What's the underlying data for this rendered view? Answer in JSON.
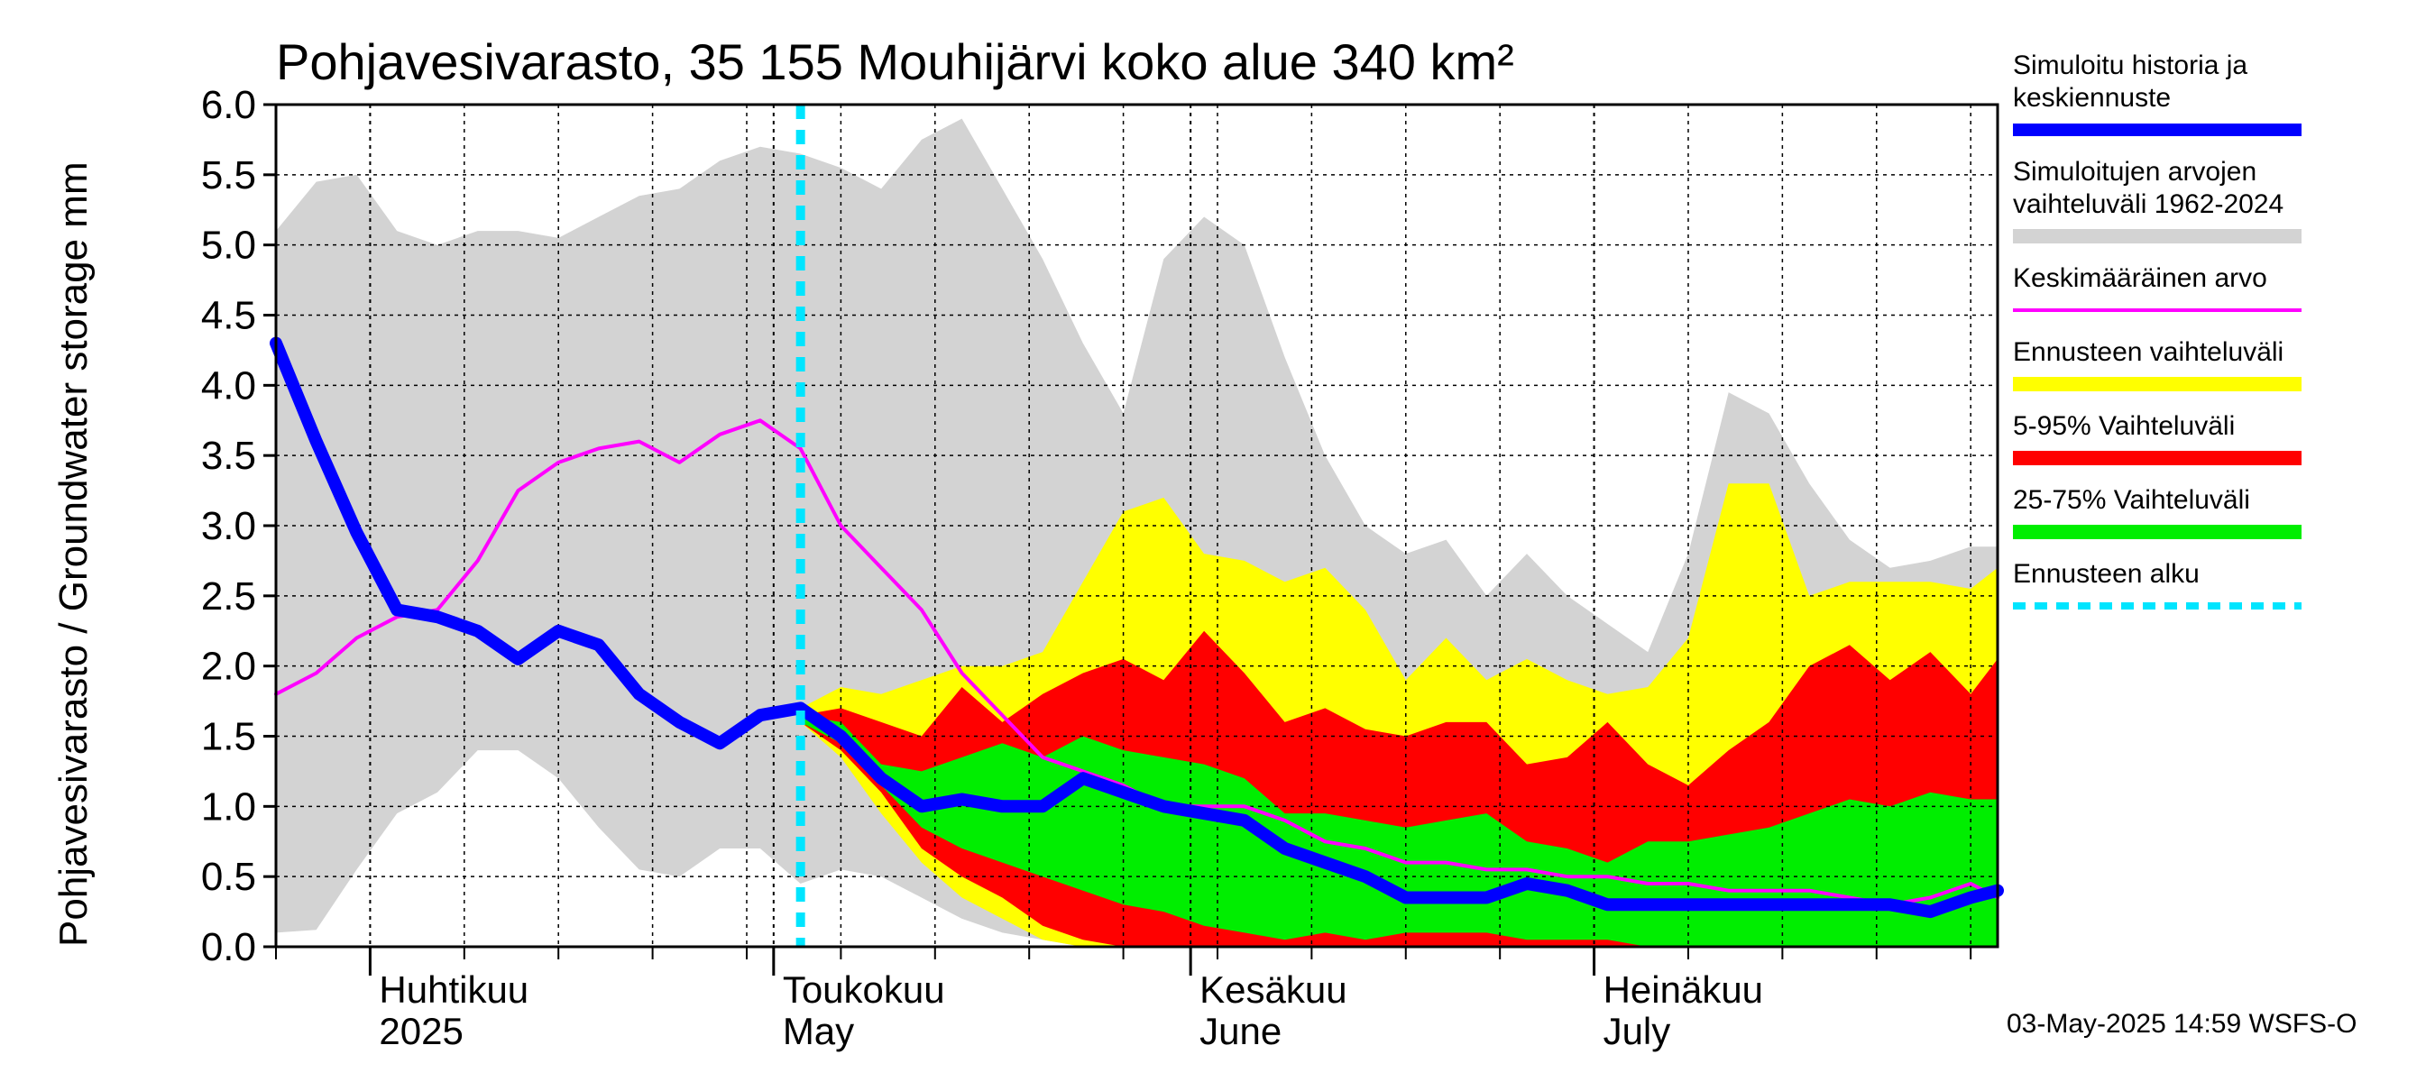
{
  "chart_data": {
    "type": "area",
    "title": "Pohjavesivarasto, 35 155 Mouhijärvi koko alue 340 km²",
    "ylabel": "Pohjavesivarasto / Groundwater storage   mm",
    "ylim": [
      0,
      6.0
    ],
    "yticks": [
      "0.0",
      "0.5",
      "1.0",
      "1.5",
      "2.0",
      "2.5",
      "3.0",
      "3.5",
      "4.0",
      "4.5",
      "5.0",
      "5.5",
      "6.0"
    ],
    "xlim": [
      "2025-03-25",
      "2025-07-31"
    ],
    "x_labels": [
      {
        "date": "2025-04-01",
        "line1": "Huhtikuu",
        "line2": "2025"
      },
      {
        "date": "2025-05-01",
        "line1": "Toukokuu",
        "line2": "May"
      },
      {
        "date": "2025-06-01",
        "line1": "Kesäkuu",
        "line2": "June"
      },
      {
        "date": "2025-07-01",
        "line1": "Heinäkuu",
        "line2": "July"
      }
    ],
    "forecast_start": "2025-05-03",
    "footer": "03-May-2025 14:59 WSFS-O",
    "legend": [
      {
        "label_lines": [
          "Simuloitu historia ja",
          "keskiennuste"
        ],
        "color": "#0000ff",
        "style": "thick"
      },
      {
        "label_lines": [
          "Simuloitujen arvojen",
          "vaihteluväli 1962-2024"
        ],
        "color": "#d3d3d3",
        "style": "band"
      },
      {
        "label_lines": [
          "Keskimääräinen arvo"
        ],
        "color": "#ff00ff",
        "style": "thin"
      },
      {
        "label_lines": [
          "Ennusteen vaihteluväli"
        ],
        "color": "#ffff00",
        "style": "band"
      },
      {
        "label_lines": [
          "5-95% Vaihteluväli"
        ],
        "color": "#ff0000",
        "style": "band"
      },
      {
        "label_lines": [
          "25-75% Vaihteluväli"
        ],
        "color": "#00ee00",
        "style": "band"
      },
      {
        "label_lines": [
          "Ennusteen alku"
        ],
        "color": "#00e5ff",
        "style": "dashed"
      }
    ],
    "series": [
      {
        "name": "Simuloitujen arvojen vaihteluväli 1962-2024",
        "kind": "band",
        "color": "#d3d3d3",
        "x": [
          "2025-03-25",
          "2025-03-28",
          "2025-03-31",
          "2025-04-03",
          "2025-04-06",
          "2025-04-09",
          "2025-04-12",
          "2025-04-15",
          "2025-04-18",
          "2025-04-21",
          "2025-04-24",
          "2025-04-27",
          "2025-04-30",
          "2025-05-03",
          "2025-05-06",
          "2025-05-09",
          "2025-05-12",
          "2025-05-15",
          "2025-05-18",
          "2025-05-21",
          "2025-05-24",
          "2025-05-27",
          "2025-05-30",
          "2025-06-02",
          "2025-06-05",
          "2025-06-08",
          "2025-06-11",
          "2025-06-14",
          "2025-06-17",
          "2025-06-20",
          "2025-06-23",
          "2025-06-26",
          "2025-06-29",
          "2025-07-02",
          "2025-07-05",
          "2025-07-08",
          "2025-07-11",
          "2025-07-14",
          "2025-07-17",
          "2025-07-20",
          "2025-07-23",
          "2025-07-26",
          "2025-07-29",
          "2025-07-31"
        ],
        "upper": [
          5.1,
          5.45,
          5.5,
          5.1,
          5.0,
          5.1,
          5.1,
          5.05,
          5.2,
          5.35,
          5.4,
          5.6,
          5.7,
          5.65,
          5.55,
          5.4,
          5.75,
          5.9,
          5.4,
          4.9,
          4.3,
          3.8,
          4.9,
          5.2,
          5.0,
          4.2,
          3.5,
          3.0,
          2.8,
          2.9,
          2.5,
          2.8,
          2.5,
          2.3,
          2.1,
          2.8,
          3.95,
          3.8,
          3.3,
          2.9,
          2.7,
          2.75,
          2.85,
          2.85
        ],
        "lower": [
          0.1,
          0.12,
          0.55,
          0.95,
          1.1,
          1.4,
          1.4,
          1.2,
          0.85,
          0.55,
          0.5,
          0.7,
          0.7,
          0.45,
          0.55,
          0.5,
          0.35,
          0.2,
          0.1,
          0.05,
          0,
          0,
          0,
          0,
          0,
          0,
          0,
          0,
          0,
          0,
          0,
          0,
          0,
          0,
          0,
          0,
          0,
          0,
          0,
          0,
          0,
          0,
          0,
          0
        ]
      },
      {
        "name": "Ennusteen vaihteluväli",
        "kind": "band",
        "color": "#ffff00",
        "x": [
          "2025-05-03",
          "2025-05-06",
          "2025-05-09",
          "2025-05-12",
          "2025-05-15",
          "2025-05-18",
          "2025-05-21",
          "2025-05-24",
          "2025-05-27",
          "2025-05-30",
          "2025-06-02",
          "2025-06-05",
          "2025-06-08",
          "2025-06-11",
          "2025-06-14",
          "2025-06-17",
          "2025-06-20",
          "2025-06-23",
          "2025-06-26",
          "2025-06-29",
          "2025-07-02",
          "2025-07-05",
          "2025-07-08",
          "2025-07-11",
          "2025-07-14",
          "2025-07-17",
          "2025-07-20",
          "2025-07-23",
          "2025-07-26",
          "2025-07-29",
          "2025-07-31"
        ],
        "upper": [
          1.7,
          1.85,
          1.8,
          1.9,
          2.0,
          2.0,
          2.1,
          2.6,
          3.1,
          3.2,
          2.8,
          2.75,
          2.6,
          2.7,
          2.4,
          1.9,
          2.2,
          1.9,
          2.05,
          1.9,
          1.8,
          1.85,
          2.2,
          3.3,
          3.3,
          2.5,
          2.6,
          2.6,
          2.6,
          2.55,
          2.7
        ],
        "lower": [
          1.6,
          1.35,
          0.95,
          0.6,
          0.35,
          0.2,
          0.05,
          0,
          0,
          0,
          0,
          0,
          0,
          0,
          0,
          0,
          0,
          0,
          0,
          0,
          0,
          0,
          0,
          0,
          0,
          0,
          0,
          0,
          0,
          0,
          0
        ]
      },
      {
        "name": "5-95% Vaihteluväli",
        "kind": "band",
        "color": "#ff0000",
        "x": [
          "2025-05-03",
          "2025-05-06",
          "2025-05-09",
          "2025-05-12",
          "2025-05-15",
          "2025-05-18",
          "2025-05-21",
          "2025-05-24",
          "2025-05-27",
          "2025-05-30",
          "2025-06-02",
          "2025-06-05",
          "2025-06-08",
          "2025-06-11",
          "2025-06-14",
          "2025-06-17",
          "2025-06-20",
          "2025-06-23",
          "2025-06-26",
          "2025-06-29",
          "2025-07-02",
          "2025-07-05",
          "2025-07-08",
          "2025-07-11",
          "2025-07-14",
          "2025-07-17",
          "2025-07-20",
          "2025-07-23",
          "2025-07-26",
          "2025-07-29",
          "2025-07-31"
        ],
        "upper": [
          1.65,
          1.7,
          1.6,
          1.5,
          1.85,
          1.6,
          1.8,
          1.95,
          2.05,
          1.9,
          2.25,
          1.95,
          1.6,
          1.7,
          1.55,
          1.5,
          1.6,
          1.6,
          1.3,
          1.35,
          1.6,
          1.3,
          1.15,
          1.4,
          1.6,
          2.0,
          2.15,
          1.9,
          2.1,
          1.8,
          2.05
        ],
        "lower": [
          1.6,
          1.4,
          1.1,
          0.7,
          0.5,
          0.35,
          0.15,
          0.05,
          0,
          0,
          0,
          0,
          0,
          0,
          0,
          0,
          0,
          0,
          0,
          0,
          0,
          0,
          0,
          0,
          0,
          0,
          0,
          0,
          0,
          0,
          0
        ]
      },
      {
        "name": "25-75% Vaihteluväli",
        "kind": "band",
        "color": "#00ee00",
        "x": [
          "2025-05-03",
          "2025-05-06",
          "2025-05-09",
          "2025-05-12",
          "2025-05-15",
          "2025-05-18",
          "2025-05-21",
          "2025-05-24",
          "2025-05-27",
          "2025-05-30",
          "2025-06-02",
          "2025-06-05",
          "2025-06-08",
          "2025-06-11",
          "2025-06-14",
          "2025-06-17",
          "2025-06-20",
          "2025-06-23",
          "2025-06-26",
          "2025-06-29",
          "2025-07-02",
          "2025-07-05",
          "2025-07-08",
          "2025-07-11",
          "2025-07-14",
          "2025-07-17",
          "2025-07-20",
          "2025-07-23",
          "2025-07-26",
          "2025-07-29",
          "2025-07-31"
        ],
        "upper": [
          1.65,
          1.6,
          1.3,
          1.25,
          1.35,
          1.45,
          1.35,
          1.5,
          1.4,
          1.35,
          1.3,
          1.2,
          0.95,
          0.95,
          0.9,
          0.85,
          0.9,
          0.95,
          0.75,
          0.7,
          0.6,
          0.75,
          0.75,
          0.8,
          0.85,
          0.95,
          1.05,
          1.0,
          1.1,
          1.05,
          1.05
        ],
        "lower": [
          1.6,
          1.45,
          1.15,
          0.85,
          0.7,
          0.6,
          0.5,
          0.4,
          0.3,
          0.25,
          0.15,
          0.1,
          0.05,
          0.1,
          0.05,
          0.1,
          0.1,
          0.1,
          0.05,
          0.05,
          0.05,
          0,
          0,
          0,
          0,
          0,
          0,
          0,
          0,
          0,
          0
        ]
      },
      {
        "name": "Keskimääräinen arvo",
        "kind": "line",
        "color": "#ff00ff",
        "x": [
          "2025-03-25",
          "2025-03-28",
          "2025-03-31",
          "2025-04-03",
          "2025-04-06",
          "2025-04-09",
          "2025-04-12",
          "2025-04-15",
          "2025-04-18",
          "2025-04-21",
          "2025-04-24",
          "2025-04-27",
          "2025-04-30",
          "2025-05-03",
          "2025-05-06",
          "2025-05-09",
          "2025-05-12",
          "2025-05-15",
          "2025-05-18",
          "2025-05-21",
          "2025-05-24",
          "2025-05-27",
          "2025-05-30",
          "2025-06-02",
          "2025-06-05",
          "2025-06-08",
          "2025-06-11",
          "2025-06-14",
          "2025-06-17",
          "2025-06-20",
          "2025-06-23",
          "2025-06-26",
          "2025-06-29",
          "2025-07-02",
          "2025-07-05",
          "2025-07-08",
          "2025-07-11",
          "2025-07-14",
          "2025-07-17",
          "2025-07-20",
          "2025-07-23",
          "2025-07-26",
          "2025-07-29",
          "2025-07-31"
        ],
        "y": [
          1.8,
          1.95,
          2.2,
          2.35,
          2.4,
          2.75,
          3.25,
          3.45,
          3.55,
          3.6,
          3.45,
          3.65,
          3.75,
          3.55,
          3.0,
          2.7,
          2.4,
          1.95,
          1.65,
          1.35,
          1.25,
          1.15,
          1.0,
          1.0,
          1.0,
          0.9,
          0.75,
          0.7,
          0.6,
          0.6,
          0.55,
          0.55,
          0.5,
          0.5,
          0.45,
          0.45,
          0.4,
          0.4,
          0.4,
          0.35,
          0.3,
          0.35,
          0.45,
          0.35
        ]
      },
      {
        "name": "Simuloitu historia ja keskiennuste",
        "kind": "line",
        "color": "#0000ff",
        "x": [
          "2025-03-25",
          "2025-03-28",
          "2025-03-31",
          "2025-04-03",
          "2025-04-06",
          "2025-04-09",
          "2025-04-12",
          "2025-04-15",
          "2025-04-18",
          "2025-04-21",
          "2025-04-24",
          "2025-04-27",
          "2025-04-30",
          "2025-05-03",
          "2025-05-06",
          "2025-05-09",
          "2025-05-12",
          "2025-05-15",
          "2025-05-18",
          "2025-05-21",
          "2025-05-24",
          "2025-05-27",
          "2025-05-30",
          "2025-06-02",
          "2025-06-05",
          "2025-06-08",
          "2025-06-11",
          "2025-06-14",
          "2025-06-17",
          "2025-06-20",
          "2025-06-23",
          "2025-06-26",
          "2025-06-29",
          "2025-07-02",
          "2025-07-05",
          "2025-07-08",
          "2025-07-11",
          "2025-07-14",
          "2025-07-17",
          "2025-07-20",
          "2025-07-23",
          "2025-07-26",
          "2025-07-29",
          "2025-07-31"
        ],
        "y": [
          4.3,
          3.6,
          2.95,
          2.4,
          2.35,
          2.25,
          2.05,
          2.25,
          2.15,
          1.8,
          1.6,
          1.45,
          1.65,
          1.7,
          1.5,
          1.2,
          1.0,
          1.05,
          1.0,
          1.0,
          1.2,
          1.1,
          1.0,
          0.95,
          0.9,
          0.7,
          0.6,
          0.5,
          0.35,
          0.35,
          0.35,
          0.45,
          0.4,
          0.3,
          0.3,
          0.3,
          0.3,
          0.3,
          0.3,
          0.3,
          0.3,
          0.25,
          0.35,
          0.4
        ]
      }
    ]
  }
}
